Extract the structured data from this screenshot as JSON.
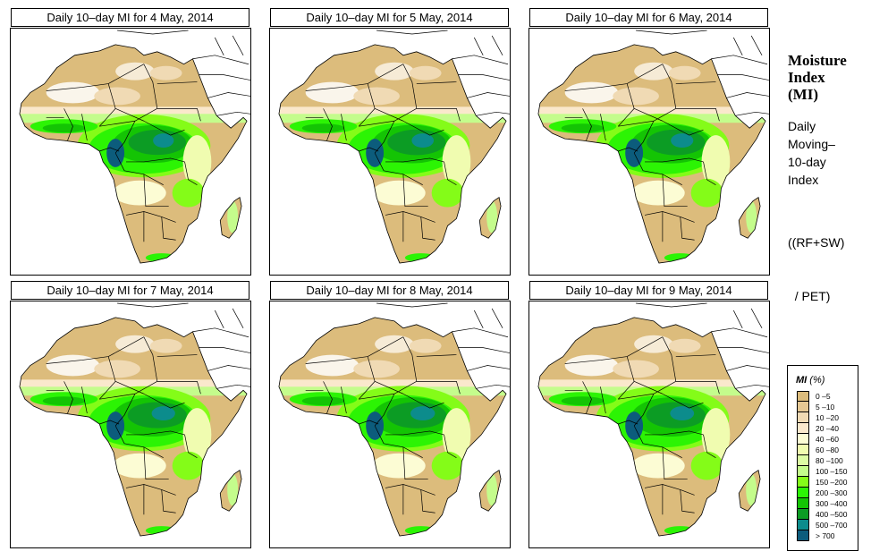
{
  "panels": [
    {
      "title": "Daily 10–day MI for  4 May, 2014",
      "date": "4 May, 2014",
      "wet_level": 0.55
    },
    {
      "title": "Daily 10–day MI for  5 May, 2014",
      "date": "5 May, 2014",
      "wet_level": 0.6
    },
    {
      "title": "Daily 10–day MI for  6 May, 2014",
      "date": "6 May, 2014",
      "wet_level": 0.62
    },
    {
      "title": "Daily 10–day MI for  7 May, 2014",
      "date": "7 May, 2014",
      "wet_level": 0.66
    },
    {
      "title": "Daily 10–day MI for  8 May, 2014",
      "date": "8 May, 2014",
      "wet_level": 0.7
    },
    {
      "title": "Daily 10–day MI for  9 May, 2014",
      "date": "9 May, 2014",
      "wet_level": 0.68
    }
  ],
  "side_panel": {
    "title_lines": [
      "Moisture",
      "Index",
      "(MI)"
    ],
    "description_lines": [
      "Daily",
      "Moving–",
      "10-day",
      "Index"
    ],
    "formula_lines": [
      "((RF+SW)",
      "  / PET)"
    ]
  },
  "legend": {
    "title_main": "MI",
    "title_unit": " (%)",
    "items": [
      {
        "label": "0 –5",
        "color": "#dcbc7c"
      },
      {
        "label": "5 –10",
        "color": "#e5c894"
      },
      {
        "label": "10 –20",
        "color": "#f0dab4"
      },
      {
        "label": "20 –40",
        "color": "#fae8cc"
      },
      {
        "label": "40 –60",
        "color": "#fcfcd4"
      },
      {
        "label": "60 –80",
        "color": "#f0fcb0"
      },
      {
        "label": "80 –100",
        "color": "#dcfca4"
      },
      {
        "label": "100 –150",
        "color": "#c4fc8c"
      },
      {
        "label": "150 –200",
        "color": "#84fc18"
      },
      {
        "label": "200 –300",
        "color": "#2cf404"
      },
      {
        "label": "300 –400",
        "color": "#14c404"
      },
      {
        "label": "400 –500",
        "color": "#0c9c24"
      },
      {
        "label": "500 –700",
        "color": "#0c8c8c"
      },
      {
        "label": "> 700",
        "color": "#0c5c7c"
      }
    ]
  }
}
